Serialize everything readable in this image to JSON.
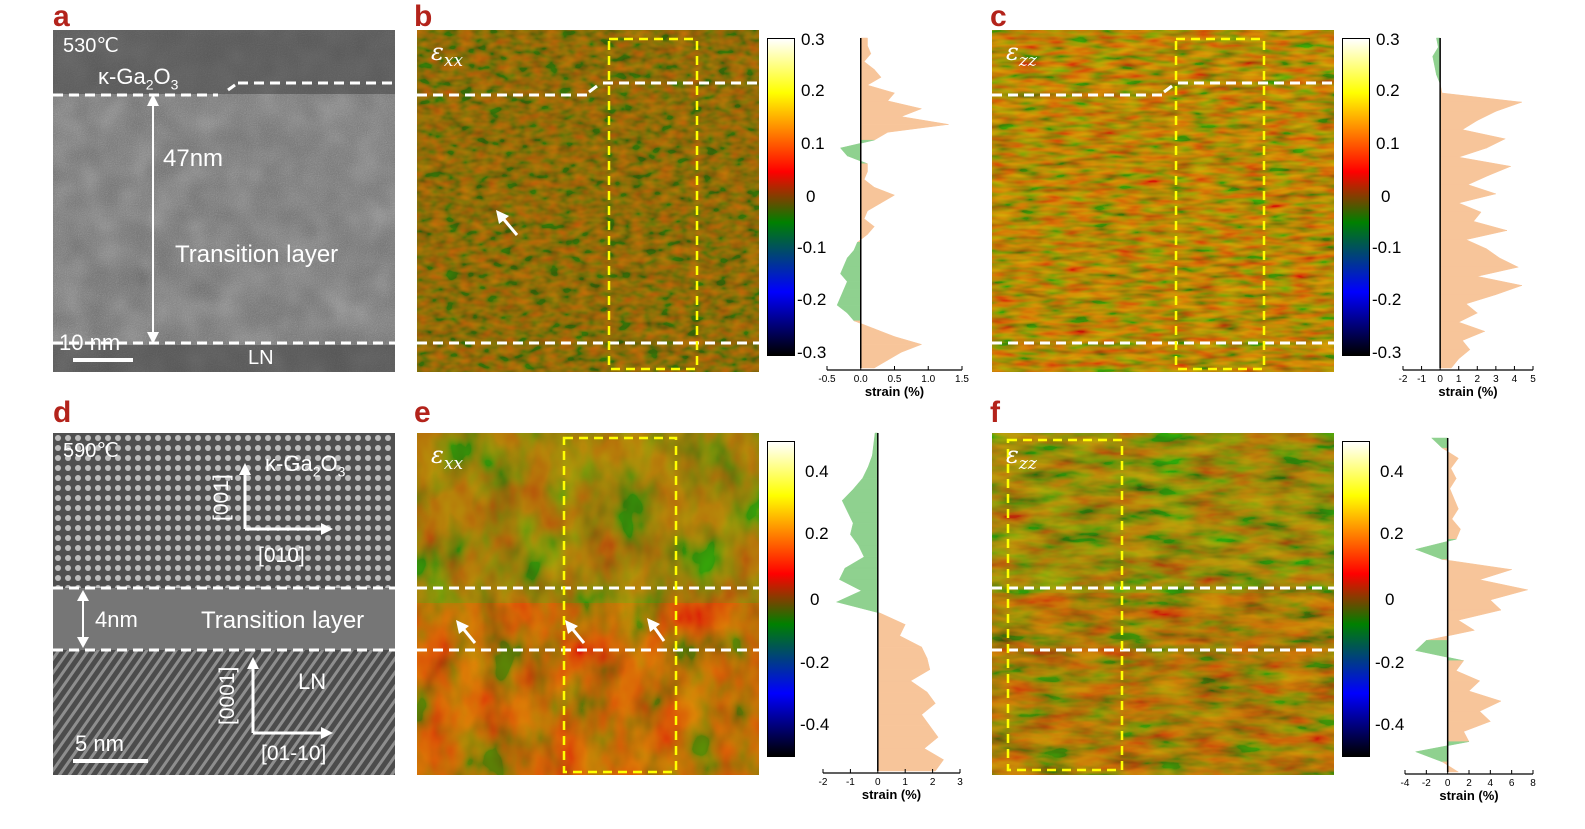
{
  "panel_labels": {
    "a": "a",
    "b": "b",
    "c": "c",
    "d": "d",
    "e": "e",
    "f": "f"
  },
  "panel_a": {
    "temperature": "530℃",
    "material_top": "κ-Ga2O3",
    "thickness": "47nm",
    "layer": "Transition layer",
    "scale": "10 nm",
    "substrate": "LN"
  },
  "panel_d": {
    "temperature": "590℃",
    "material_top": "κ-Ga2O3",
    "axis1": "[001]",
    "axis2": "[010]",
    "thickness": "4nm",
    "layer": "Transition layer",
    "substrate": "LN",
    "axis3": "[0001]",
    "axis4": "[01-10]",
    "scale": "5 nm"
  },
  "strain_symbols": {
    "b": "xx",
    "c": "zz",
    "e": "xx",
    "f": "zz"
  },
  "colorbar_top": {
    "ticks": [
      "0.3",
      "0.2",
      "0.1",
      "0",
      "-0.1",
      "-0.2",
      "-0.3"
    ]
  },
  "colorbar_bottom": {
    "ticks": [
      "0.4",
      "0.2",
      "0",
      "-0.2",
      "-0.4"
    ]
  },
  "colors": {
    "map_base": "#7a5a14",
    "tensile": "#f7c59a",
    "compressive": "#8fd18f",
    "dashed_white": "#ffffff",
    "dashed_yellow": "#ffff00",
    "label_red": "#b3231b"
  },
  "chart_data": [
    {
      "type": "area",
      "panel": "b",
      "xlabel": "strain (%)",
      "xticks": [
        "-0.5",
        "0.0",
        "0.5",
        "1.0",
        "1.5"
      ],
      "xlim": [
        -0.5,
        1.5
      ],
      "values": [
        0.1,
        0.1,
        0.15,
        0.05,
        0.2,
        0.3,
        0.1,
        0.5,
        0.4,
        0.9,
        0.6,
        1.3,
        0.4,
        0.2,
        -0.3,
        -0.2,
        0.1,
        0.1,
        0.05,
        0.2,
        0.5,
        0.3,
        0.1,
        0.05,
        0.2,
        0.1,
        -0.05,
        -0.1,
        -0.2,
        -0.25,
        -0.3,
        -0.2,
        -0.25,
        -0.3,
        -0.35,
        -0.2,
        -0.1,
        0.2,
        0.5,
        0.9,
        0.6,
        0.4,
        0.2
      ]
    },
    {
      "type": "area",
      "panel": "c",
      "xlabel": "strain (%)",
      "xticks": [
        "-2",
        "-1",
        "0",
        "1",
        "2",
        "3",
        "4",
        "5"
      ],
      "xlim": [
        -2,
        5
      ],
      "values": [
        -0.2,
        -0.1,
        -0.4,
        -0.3,
        -0.2,
        0.0,
        0.1,
        4.4,
        3.0,
        2.0,
        1.2,
        3.5,
        2.5,
        1.0,
        3.8,
        2.6,
        1.5,
        3.0,
        1.0,
        2.2,
        1.8,
        3.6,
        1.4,
        2.5,
        3.2,
        4.2,
        2.0,
        4.4,
        3.0,
        1.4,
        2.0,
        1.0,
        2.4,
        1.2,
        1.6,
        1.0,
        0.6
      ]
    },
    {
      "type": "area",
      "panel": "e",
      "xlabel": "strain (%)",
      "xticks": [
        "-2",
        "-1",
        "0",
        "1",
        "2",
        "3"
      ],
      "xlim": [
        -2,
        3
      ],
      "values": [
        -0.1,
        -0.15,
        -0.2,
        -0.35,
        -0.55,
        -0.9,
        -1.3,
        -1.1,
        -0.9,
        -1.0,
        -0.7,
        -0.5,
        -1.2,
        -1.4,
        -0.6,
        -1.5,
        0.1,
        1.0,
        0.8,
        1.6,
        1.8,
        1.9,
        1.2,
        1.8,
        2.1,
        1.6,
        1.9,
        2.2,
        1.7,
        2.4,
        2.1
      ]
    },
    {
      "type": "area",
      "panel": "f",
      "xlabel": "strain (%)",
      "xticks": [
        "-4",
        "-2",
        "0",
        "2",
        "4",
        "6",
        "8"
      ],
      "xlim": [
        -4,
        8
      ],
      "values": [
        -1.5,
        -0.5,
        1.0,
        0.3,
        0.8,
        0.2,
        0.6,
        1.0,
        0.4,
        1.2,
        0.8,
        -3.0,
        -0.5,
        6.0,
        3.0,
        7.5,
        4.0,
        5.0,
        1.0,
        2.5,
        -2.0,
        -3.0,
        1.5,
        0.8,
        3.0,
        2.0,
        5.0,
        3.0,
        4.0,
        1.5,
        2.0,
        -3.0,
        -0.5,
        1.0
      ]
    }
  ]
}
